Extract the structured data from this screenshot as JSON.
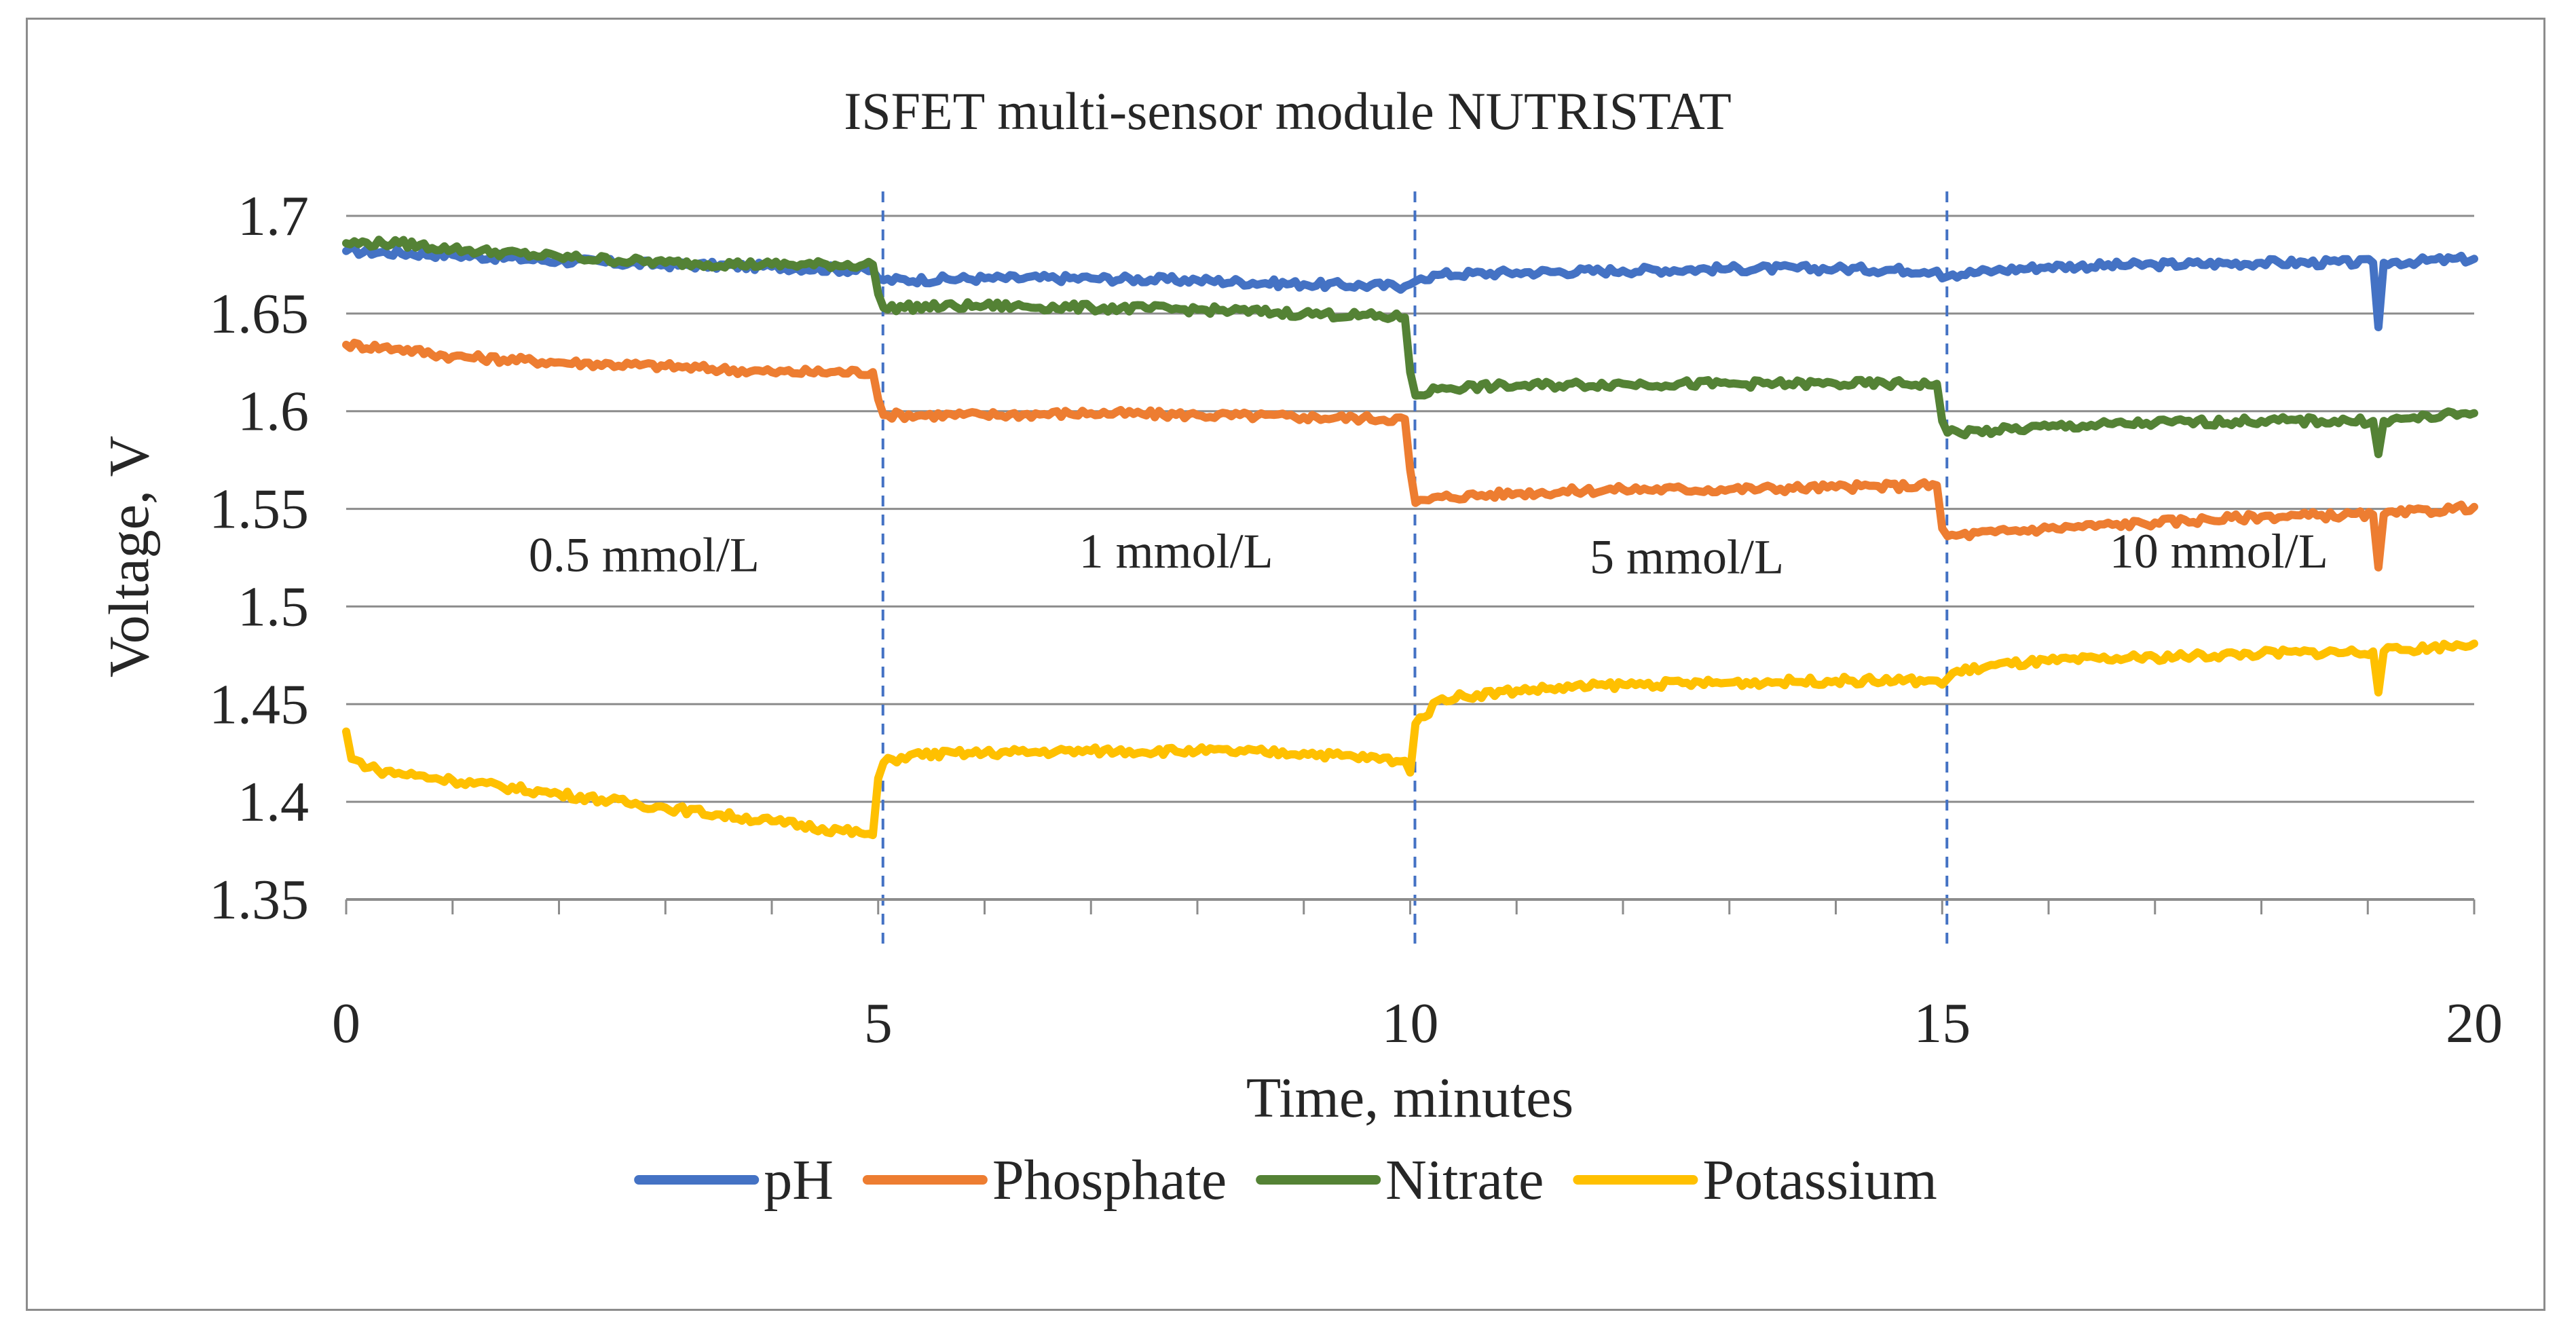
{
  "chart_data": {
    "type": "line",
    "title": "ISFET multi-sensor module NUTRISTAT",
    "xlabel": "Time, minutes",
    "ylabel": "Voltage, V",
    "xlim": [
      0,
      20
    ],
    "ylim": [
      1.35,
      1.7
    ],
    "x_ticks": [
      0,
      5,
      10,
      15,
      20
    ],
    "x_tick_labels": [
      "0",
      "5",
      "10",
      "15",
      "20"
    ],
    "x_minor_tick_step": 1,
    "y_ticks": [
      1.35,
      1.4,
      1.45,
      1.5,
      1.55,
      1.6,
      1.65,
      1.7
    ],
    "y_tick_labels": [
      "1.35",
      "1.4",
      "1.45",
      "1.5",
      "1.55",
      "1.6",
      "1.65",
      "1.7"
    ],
    "grid": "horizontal",
    "legend_position": "bottom",
    "vertical_markers": [
      5,
      10,
      15
    ],
    "annotations": [
      {
        "text": "0.5 mmol/L",
        "x": 2.8,
        "y": 1.518
      },
      {
        "text": "1 mmol/L",
        "x": 7.8,
        "y": 1.52
      },
      {
        "text": "5 mmol/L",
        "x": 12.6,
        "y": 1.517
      },
      {
        "text": "10 mmol/L",
        "x": 17.6,
        "y": 1.52
      }
    ],
    "series": [
      {
        "name": "pH",
        "color": "#4472C4",
        "points": [
          [
            0,
            1.682
          ],
          [
            1,
            1.68
          ],
          [
            2,
            1.677
          ],
          [
            3,
            1.675
          ],
          [
            4,
            1.674
          ],
          [
            4.95,
            1.672
          ],
          [
            5,
            1.668
          ],
          [
            5.05,
            1.667
          ],
          [
            6,
            1.668
          ],
          [
            7,
            1.668
          ],
          [
            8,
            1.667
          ],
          [
            9,
            1.665
          ],
          [
            9.95,
            1.664
          ],
          [
            10,
            1.665
          ],
          [
            10.1,
            1.668
          ],
          [
            10.3,
            1.67
          ],
          [
            11,
            1.671
          ],
          [
            12,
            1.672
          ],
          [
            13,
            1.673
          ],
          [
            14,
            1.673
          ],
          [
            14.95,
            1.672
          ],
          [
            15,
            1.668
          ],
          [
            15.1,
            1.67
          ],
          [
            15.5,
            1.672
          ],
          [
            16,
            1.674
          ],
          [
            17,
            1.675
          ],
          [
            18,
            1.676
          ],
          [
            19.05,
            1.676
          ],
          [
            19.1,
            1.643
          ],
          [
            19.15,
            1.676
          ],
          [
            20,
            1.678
          ]
        ]
      },
      {
        "name": "Phosphate",
        "color": "#ED7D31",
        "points": [
          [
            0,
            1.634
          ],
          [
            0.5,
            1.632
          ],
          [
            1,
            1.628
          ],
          [
            2,
            1.625
          ],
          [
            3,
            1.623
          ],
          [
            4,
            1.62
          ],
          [
            4.95,
            1.62
          ],
          [
            5,
            1.606
          ],
          [
            5.05,
            1.598
          ],
          [
            6,
            1.598
          ],
          [
            7,
            1.599
          ],
          [
            8,
            1.598
          ],
          [
            9,
            1.597
          ],
          [
            9.95,
            1.596
          ],
          [
            10,
            1.57
          ],
          [
            10.05,
            1.553
          ],
          [
            10.3,
            1.556
          ],
          [
            11,
            1.558
          ],
          [
            12,
            1.56
          ],
          [
            13,
            1.56
          ],
          [
            14,
            1.561
          ],
          [
            14.95,
            1.562
          ],
          [
            15,
            1.54
          ],
          [
            15.05,
            1.536
          ],
          [
            15.5,
            1.538
          ],
          [
            16,
            1.54
          ],
          [
            17,
            1.543
          ],
          [
            18,
            1.546
          ],
          [
            19.05,
            1.547
          ],
          [
            19.1,
            1.52
          ],
          [
            19.15,
            1.547
          ],
          [
            20,
            1.551
          ]
        ]
      },
      {
        "name": "Nitrate",
        "color": "#548235",
        "points": [
          [
            0,
            1.686
          ],
          [
            0.5,
            1.686
          ],
          [
            1,
            1.683
          ],
          [
            2,
            1.679
          ],
          [
            3,
            1.676
          ],
          [
            4,
            1.675
          ],
          [
            4.95,
            1.675
          ],
          [
            5,
            1.66
          ],
          [
            5.05,
            1.653
          ],
          [
            6,
            1.654
          ],
          [
            7,
            1.653
          ],
          [
            8,
            1.652
          ],
          [
            9,
            1.65
          ],
          [
            9.95,
            1.648
          ],
          [
            10,
            1.62
          ],
          [
            10.05,
            1.608
          ],
          [
            10.3,
            1.612
          ],
          [
            11,
            1.613
          ],
          [
            12,
            1.614
          ],
          [
            13,
            1.614
          ],
          [
            14,
            1.614
          ],
          [
            14.95,
            1.614
          ],
          [
            15,
            1.595
          ],
          [
            15.05,
            1.589
          ],
          [
            15.5,
            1.59
          ],
          [
            16,
            1.592
          ],
          [
            17,
            1.594
          ],
          [
            18,
            1.595
          ],
          [
            19.05,
            1.595
          ],
          [
            19.1,
            1.578
          ],
          [
            19.15,
            1.595
          ],
          [
            20,
            1.599
          ]
        ]
      },
      {
        "name": "Potassium",
        "color": "#FFC000",
        "points": [
          [
            0,
            1.436
          ],
          [
            0.05,
            1.422
          ],
          [
            0.3,
            1.416
          ],
          [
            1,
            1.411
          ],
          [
            2,
            1.404
          ],
          [
            3,
            1.397
          ],
          [
            4,
            1.39
          ],
          [
            4.95,
            1.383
          ],
          [
            5,
            1.412
          ],
          [
            5.05,
            1.42
          ],
          [
            5.3,
            1.424
          ],
          [
            6,
            1.425
          ],
          [
            7,
            1.426
          ],
          [
            8,
            1.426
          ],
          [
            9,
            1.425
          ],
          [
            9.95,
            1.421
          ],
          [
            10,
            1.415
          ],
          [
            10.05,
            1.44
          ],
          [
            10.3,
            1.453
          ],
          [
            11,
            1.457
          ],
          [
            12,
            1.46
          ],
          [
            13,
            1.461
          ],
          [
            14,
            1.462
          ],
          [
            14.95,
            1.462
          ],
          [
            15,
            1.46
          ],
          [
            15.1,
            1.466
          ],
          [
            15.5,
            1.47
          ],
          [
            16,
            1.472
          ],
          [
            17,
            1.474
          ],
          [
            18,
            1.476
          ],
          [
            19.05,
            1.477
          ],
          [
            19.1,
            1.456
          ],
          [
            19.15,
            1.477
          ],
          [
            20,
            1.481
          ]
        ]
      }
    ]
  }
}
